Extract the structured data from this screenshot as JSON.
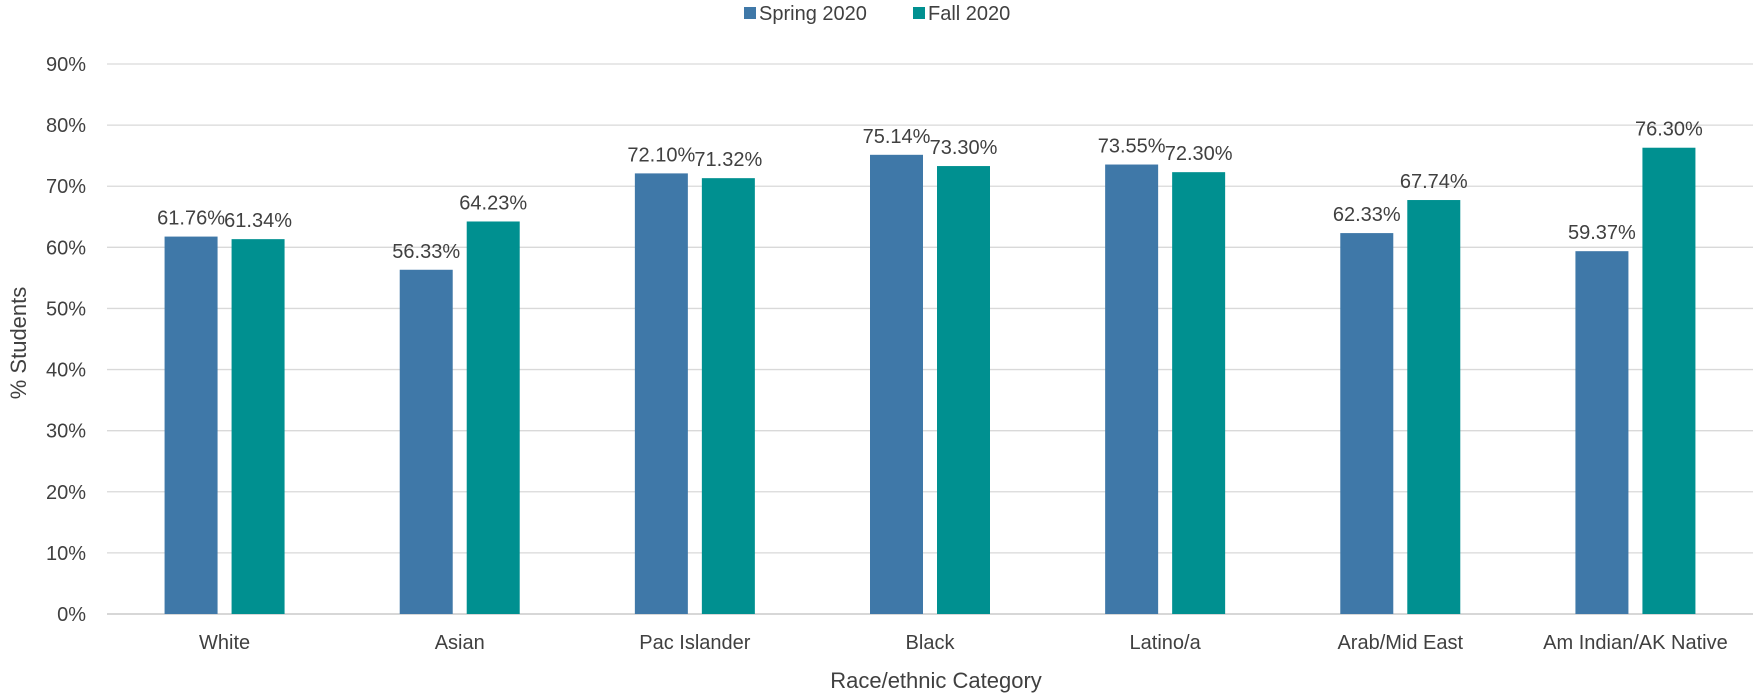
{
  "chart_data": {
    "type": "bar",
    "title": "",
    "xlabel": "Race/ethnic Category",
    "ylabel": "% Students",
    "ylim": [
      0,
      90
    ],
    "yticks": [
      0,
      10,
      20,
      30,
      40,
      50,
      60,
      70,
      80,
      90
    ],
    "ytick_labels": [
      "0%",
      "10%",
      "20%",
      "30%",
      "40%",
      "50%",
      "60%",
      "70%",
      "80%",
      "90%"
    ],
    "grid": true,
    "legend_position": "top-center",
    "categories": [
      "White",
      "Asian",
      "Pac Islander",
      "Black",
      "Latino/a",
      "Arab/Mid East",
      "Am Indian/AK Native"
    ],
    "series": [
      {
        "name": "Spring 2020",
        "color": "#3f78a8",
        "values": [
          61.76,
          56.33,
          72.1,
          75.14,
          73.55,
          62.33,
          59.37
        ],
        "labels": [
          "61.76%",
          "56.33%",
          "72.10%",
          "75.14%",
          "73.55%",
          "62.33%",
          "59.37%"
        ]
      },
      {
        "name": "Fall 2020",
        "color": "#009090",
        "values": [
          61.34,
          64.23,
          71.32,
          73.3,
          72.3,
          67.74,
          76.3
        ],
        "labels": [
          "61.34%",
          "64.23%",
          "71.32%",
          "73.30%",
          "72.30%",
          "67.74%",
          "76.30%"
        ]
      }
    ]
  }
}
